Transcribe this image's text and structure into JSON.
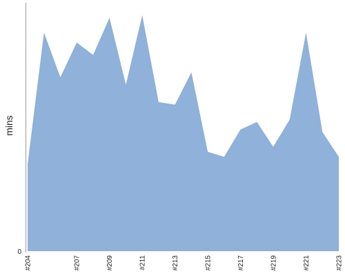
{
  "chart_data": {
    "type": "area",
    "title": "",
    "xlabel": "",
    "ylabel": "mins",
    "ylim": [
      0,
      100
    ],
    "y_tick_labels": [
      "0"
    ],
    "grid": false,
    "legend": "none",
    "color": "#8fb1da",
    "x": [
      "#204",
      "#205",
      "#206",
      "#207",
      "#208",
      "#209",
      "#210",
      "#211",
      "#212",
      "#213",
      "#214",
      "#215",
      "#216",
      "#217",
      "#218",
      "#219",
      "#220",
      "#221",
      "#222",
      "#223"
    ],
    "x_tick_labels": [
      "#204",
      "#207",
      "#209",
      "#211",
      "#213",
      "#215",
      "#217",
      "#219",
      "#221",
      "#223"
    ],
    "values": [
      35,
      88,
      70,
      84,
      79,
      94,
      67,
      95,
      60,
      59,
      72,
      40,
      38,
      49,
      52,
      42,
      53,
      88,
      48,
      38
    ]
  }
}
